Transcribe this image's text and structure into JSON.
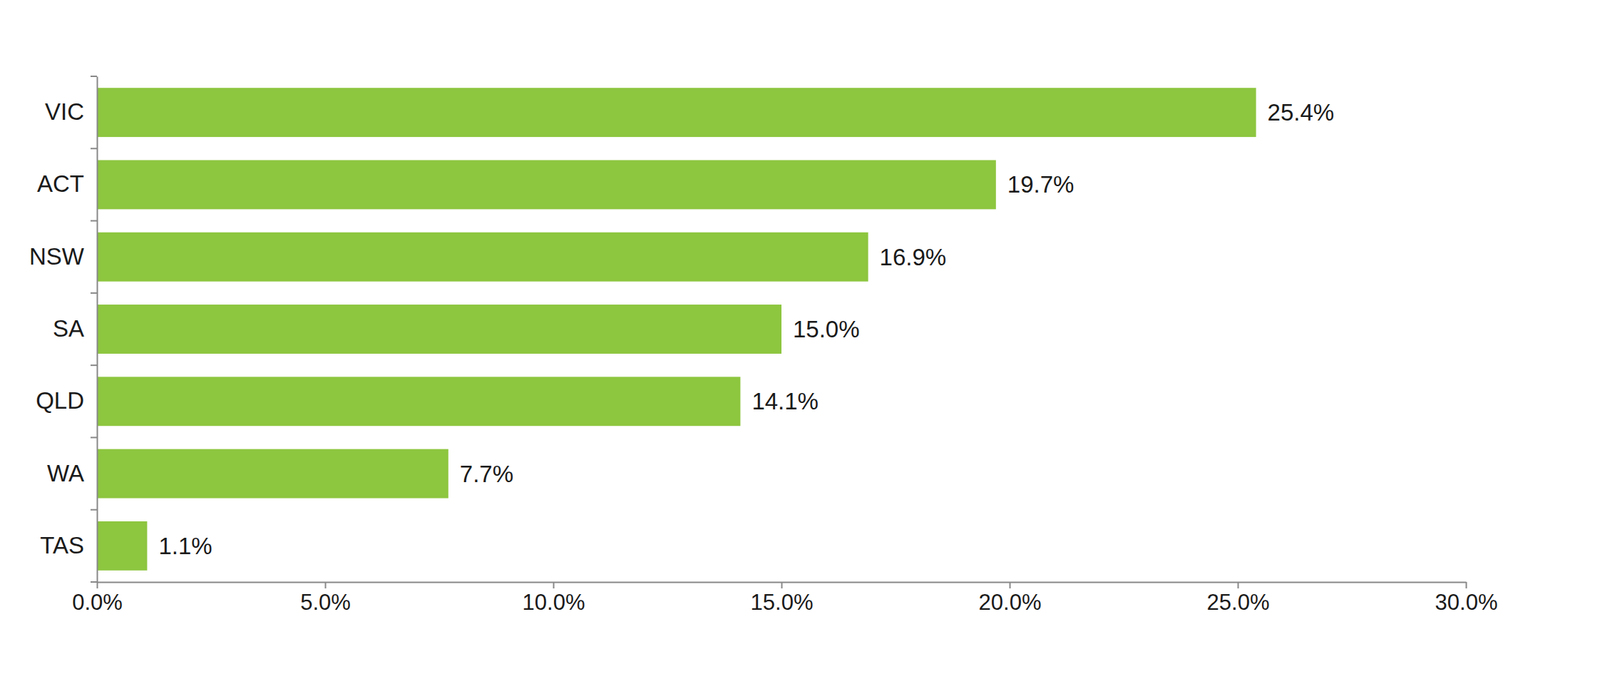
{
  "chart_data": {
    "type": "bar",
    "orientation": "horizontal",
    "categories": [
      "VIC",
      "ACT",
      "NSW",
      "SA",
      "QLD",
      "WA",
      "TAS"
    ],
    "values": [
      25.4,
      19.7,
      16.9,
      15.0,
      14.1,
      7.7,
      1.1
    ],
    "value_labels": [
      "25.4%",
      "19.7%",
      "16.9%",
      "15.0%",
      "14.1%",
      "7.7%",
      "1.1%"
    ],
    "color": "#8dc63f",
    "xlim": [
      0,
      30
    ],
    "xticks": [
      {
        "value": 0,
        "label": "0.0%"
      },
      {
        "value": 5,
        "label": "5.0%"
      },
      {
        "value": 10,
        "label": "10.0%"
      },
      {
        "value": 15,
        "label": "15.0%"
      },
      {
        "value": 20,
        "label": "20.0%"
      },
      {
        "value": 25,
        "label": "25.0%"
      },
      {
        "value": 30,
        "label": "30.0%"
      }
    ],
    "data_labels": true,
    "grid": false
  }
}
